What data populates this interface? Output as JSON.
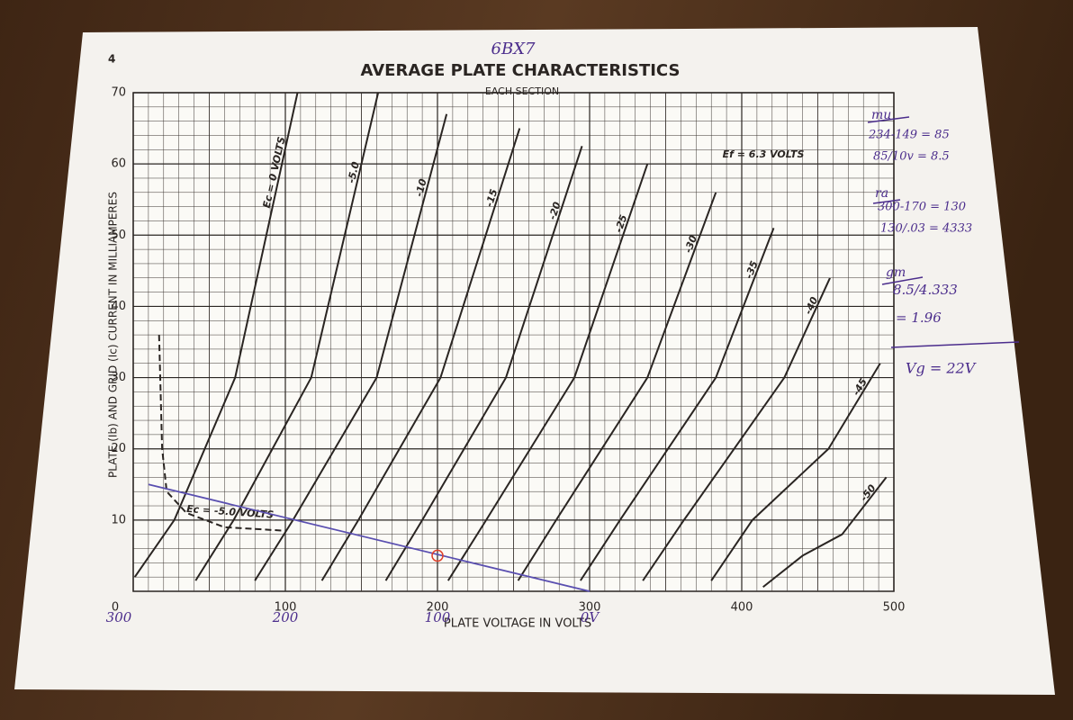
{
  "page_number": "4",
  "handwritten_title": "6BX7",
  "chart_data": {
    "type": "line",
    "title": "AVERAGE PLATE CHARACTERISTICS",
    "subtitle": "EACH SECTION",
    "heater_note": "Ef = 6.3 VOLTS",
    "x_label": "PLATE VOLTAGE IN VOLTS",
    "y_label": "PLATE (Ib) AND GRID (Ic) CURRENT IN MILLIAMPERES",
    "xlim": [
      0,
      500
    ],
    "ylim": [
      0,
      70
    ],
    "xticks": [
      0,
      100,
      200,
      300,
      400,
      500
    ],
    "yticks": [
      10,
      20,
      30,
      40,
      50,
      60,
      70
    ],
    "x2ticks": [
      {
        "value": 0,
        "label": "300"
      },
      {
        "value": 100,
        "label": "200"
      },
      {
        "value": 200,
        "label": "100"
      },
      {
        "value": 300,
        "label": "0V"
      }
    ],
    "grid": true,
    "series": [
      {
        "name": "Ec = 0 VOLTS",
        "color": "#2a2522",
        "x": [
          1,
          27,
          67,
          108
        ],
        "values": [
          2,
          10,
          30,
          70
        ]
      },
      {
        "name": "-5.0",
        "color": "#2a2522",
        "x": [
          41,
          66,
          117,
          161
        ],
        "values": [
          1.5,
          10,
          30,
          70
        ]
      },
      {
        "name": "-10",
        "color": "#2a2522",
        "x": [
          80,
          105,
          160,
          206
        ],
        "values": [
          1.5,
          10,
          30,
          67
        ]
      },
      {
        "name": "-15",
        "color": "#2a2522",
        "x": [
          124,
          148,
          202,
          254
        ],
        "values": [
          1.5,
          10,
          30,
          65
        ]
      },
      {
        "name": "-20",
        "color": "#2a2522",
        "x": [
          166,
          190,
          245,
          295
        ],
        "values": [
          1.5,
          10,
          30,
          62.5
        ]
      },
      {
        "name": "-25",
        "color": "#2a2522",
        "x": [
          207,
          232,
          290,
          338
        ],
        "values": [
          1.5,
          10,
          30,
          60
        ]
      },
      {
        "name": "-30",
        "color": "#2a2522",
        "x": [
          253,
          278,
          338,
          383
        ],
        "values": [
          1.5,
          10,
          30,
          56
        ]
      },
      {
        "name": "-35",
        "color": "#2a2522",
        "x": [
          294,
          320,
          383,
          421
        ],
        "values": [
          1.5,
          10,
          30,
          51
        ]
      },
      {
        "name": "-40",
        "color": "#2a2522",
        "x": [
          335,
          362,
          428,
          458
        ],
        "values": [
          1.5,
          10,
          30,
          44
        ]
      },
      {
        "name": "-45",
        "color": "#2a2522",
        "x": [
          380,
          407,
          457,
          491
        ],
        "values": [
          1.5,
          10,
          20,
          32
        ]
      },
      {
        "name": "-50",
        "color": "#2a2522",
        "x": [
          414,
          440,
          466,
          495
        ],
        "values": [
          0.6,
          5,
          8,
          16
        ]
      }
    ],
    "grid_current": {
      "name": "Ec = -5.0 VOLTS",
      "color": "#2a2522",
      "dashed": true,
      "x": [
        17,
        19,
        22,
        35,
        60,
        100
      ],
      "values": [
        36,
        20,
        14,
        11,
        9,
        8.5
      ]
    },
    "load_line": {
      "color": "#5a4fb0",
      "x": [
        10,
        300
      ],
      "values": [
        15,
        0
      ]
    },
    "operating_point": {
      "color": "#e0402a",
      "x": 200,
      "y": 5
    }
  },
  "notes": [
    "mu",
    "234-149 = 85",
    "85/10v = 8.5",
    "ra",
    "300-170 = 130",
    "130/.03 = 4333",
    "gm",
    "8.5/4.333",
    "= 1.96",
    "Vg = 22V"
  ]
}
